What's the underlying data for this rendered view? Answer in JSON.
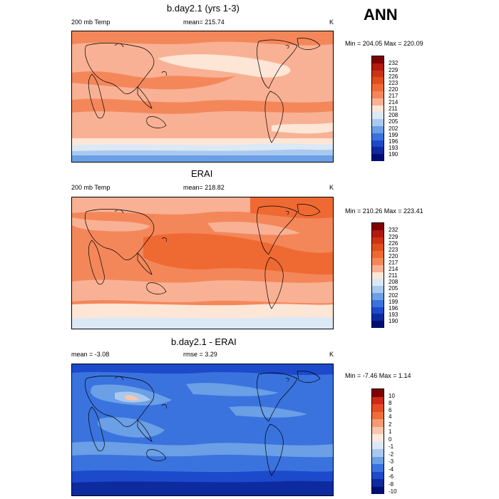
{
  "header": {
    "season": "ANN"
  },
  "panels": [
    {
      "title": "b.day2.1 (yrs 1-3)",
      "left_label": "200 mb Temp",
      "center_label": "mean= 215.74",
      "unit": "K",
      "minmax": "Min = 204.05 Max = 220.09",
      "colorbar_labels": [
        "232",
        "229",
        "226",
        "223",
        "220",
        "217",
        "214",
        "211",
        "208",
        "205",
        "202",
        "199",
        "196",
        "193",
        "190"
      ]
    },
    {
      "title": "ERAI",
      "left_label": "200 mb Temp",
      "center_label": "mean= 218.82",
      "unit": "K",
      "minmax": "Min = 210.26 Max = 223.41",
      "colorbar_labels": [
        "232",
        "229",
        "226",
        "223",
        "220",
        "217",
        "214",
        "211",
        "208",
        "205",
        "202",
        "199",
        "196",
        "193",
        "190"
      ]
    },
    {
      "title": "b.day2.1 - ERAI",
      "left_label": "mean =  -3.08",
      "center_label": "rmse =  3.29",
      "unit": "K",
      "minmax": "Min =  -7.46 Max =   1.14",
      "colorbar_labels": [
        "10",
        "8",
        "6",
        "4",
        "2",
        "1",
        "0",
        "-1",
        "-2",
        "-3",
        "-4",
        "-6",
        "-8",
        "-10"
      ]
    }
  ],
  "colors": {
    "abs_scale": [
      "#7f0000",
      "#b3190e",
      "#cc3314",
      "#e04e1c",
      "#ef6a33",
      "#f4875a",
      "#f8b194",
      "#fde6d6",
      "#dbe8f6",
      "#a9c9ee",
      "#6b9fe6",
      "#3a73de",
      "#1d49cb",
      "#0d2a9f",
      "#000e73"
    ],
    "diff_scale": [
      "#7f0000",
      "#cc2a16",
      "#e44d25",
      "#ef6d3b",
      "#f59a72",
      "#f9c6ad",
      "#fde9de",
      "#dbe8f6",
      "#a9c9ee",
      "#6b9fe6",
      "#3a73de",
      "#1d49cb",
      "#0d2a9f",
      "#000e73"
    ]
  }
}
